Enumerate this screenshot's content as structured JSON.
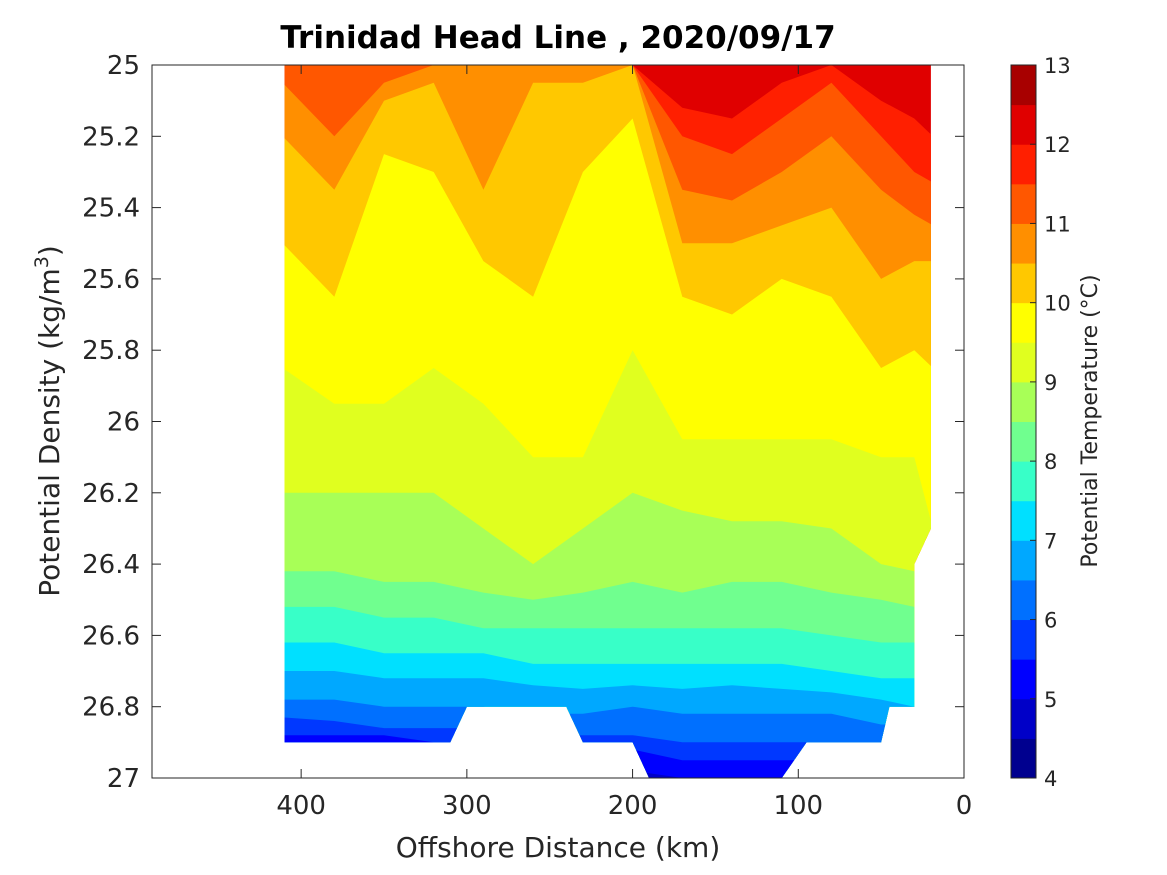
{
  "chart_data": {
    "type": "heatmap",
    "subtype": "filled-contour",
    "title": "Trinidad Head Line , 2020/09/17",
    "xlabel": "Offshore Distance (km)",
    "ylabel_main": "Potential Density (kg/m",
    "ylabel_sup": "3",
    "ylabel_close": ")",
    "x_axis": {
      "lim": [
        490,
        0
      ],
      "reversed": true,
      "ticks": [
        400,
        300,
        200,
        100,
        0
      ],
      "tick_labels": [
        "400",
        "300",
        "200",
        "100",
        "0"
      ]
    },
    "y_axis": {
      "lim": [
        25,
        27
      ],
      "reversed": true,
      "ticks": [
        25,
        25.2,
        25.4,
        25.6,
        25.8,
        26,
        26.2,
        26.4,
        26.6,
        26.8,
        27
      ],
      "tick_labels": [
        "25",
        "25.2",
        "25.4",
        "25.6",
        "25.8",
        "26",
        "26.2",
        "26.4",
        "26.6",
        "26.8",
        "27"
      ]
    },
    "colorbar": {
      "label": "Potential Temperature (°C)",
      "min": 4,
      "max": 13,
      "levels_step": 0.5,
      "ticks": [
        4,
        5,
        6,
        7,
        8,
        9,
        10,
        11,
        12,
        13
      ],
      "tick_labels": [
        "4",
        "5",
        "6",
        "7",
        "8",
        "9",
        "10",
        "11",
        "12",
        "13"
      ],
      "colors": [
        "#00008f",
        "#0000c8",
        "#0000ff",
        "#0038ff",
        "#0070ff",
        "#00a8ff",
        "#00e0ff",
        "#38ffc8",
        "#70ff8f",
        "#a8ff57",
        "#e0ff1f",
        "#ffff00",
        "#ffc800",
        "#ff8f00",
        "#ff5700",
        "#ff1f00",
        "#e00000",
        "#a80000"
      ]
    },
    "stations_x": [
      410,
      380,
      350,
      320,
      290,
      260,
      230,
      200,
      170,
      140,
      110,
      80,
      50,
      30,
      20
    ],
    "isotherms": [
      {
        "temp": 12.0,
        "y": [
          25.0,
          25.0,
          25.0,
          25.0,
          25.0,
          25.0,
          25.0,
          25.0,
          25.12,
          25.15,
          25.05,
          25.0,
          25.1,
          25.15,
          25.2
        ]
      },
      {
        "temp": 11.5,
        "y": [
          25.0,
          25.0,
          25.0,
          25.0,
          25.0,
          25.0,
          25.0,
          25.0,
          25.2,
          25.25,
          25.15,
          25.05,
          25.2,
          25.3,
          25.33
        ]
      },
      {
        "temp": 11.0,
        "y": [
          25.05,
          25.2,
          25.05,
          25.0,
          25.0,
          25.0,
          25.0,
          25.0,
          25.35,
          25.38,
          25.3,
          25.2,
          25.35,
          25.42,
          25.45
        ]
      },
      {
        "temp": 10.5,
        "y": [
          25.2,
          25.35,
          25.1,
          25.05,
          25.35,
          25.05,
          25.05,
          25.0,
          25.5,
          25.5,
          25.45,
          25.4,
          25.6,
          25.55,
          25.55
        ]
      },
      {
        "temp": 10.0,
        "y": [
          25.5,
          25.65,
          25.25,
          25.3,
          25.55,
          25.65,
          25.3,
          25.15,
          25.65,
          25.7,
          25.6,
          25.65,
          25.85,
          25.8,
          25.85
        ]
      },
      {
        "temp": 9.5,
        "y": [
          25.85,
          25.95,
          25.95,
          25.85,
          25.95,
          26.1,
          26.1,
          25.8,
          26.05,
          26.05,
          26.05,
          26.05,
          26.1,
          26.1,
          26.3
        ]
      },
      {
        "temp": 9.0,
        "y": [
          26.2,
          26.2,
          26.2,
          26.2,
          26.3,
          26.4,
          26.3,
          26.2,
          26.25,
          26.28,
          26.28,
          26.3,
          26.4,
          26.42,
          26.42
        ]
      },
      {
        "temp": 8.5,
        "y": [
          26.42,
          26.42,
          26.45,
          26.45,
          26.48,
          26.5,
          26.48,
          26.45,
          26.48,
          26.45,
          26.45,
          26.48,
          26.5,
          26.52,
          26.52
        ]
      },
      {
        "temp": 8.0,
        "y": [
          26.52,
          26.52,
          26.55,
          26.55,
          26.58,
          26.58,
          26.58,
          26.58,
          26.58,
          26.58,
          26.58,
          26.6,
          26.62,
          26.62,
          26.62
        ]
      },
      {
        "temp": 7.5,
        "y": [
          26.62,
          26.62,
          26.65,
          26.65,
          26.65,
          26.68,
          26.68,
          26.68,
          26.68,
          26.68,
          26.68,
          26.7,
          26.72,
          26.72,
          26.72
        ]
      },
      {
        "temp": 7.0,
        "y": [
          26.7,
          26.7,
          26.72,
          26.72,
          26.72,
          26.74,
          26.75,
          26.74,
          26.75,
          26.74,
          26.75,
          26.76,
          26.78,
          26.8,
          26.8
        ]
      },
      {
        "temp": 6.5,
        "y": [
          26.78,
          26.78,
          26.8,
          26.8,
          26.8,
          26.82,
          26.82,
          26.8,
          26.82,
          26.82,
          26.82,
          26.82,
          26.85,
          26.85,
          26.85
        ]
      },
      {
        "temp": 6.0,
        "y": [
          26.83,
          26.84,
          26.86,
          26.86,
          26.86,
          26.88,
          26.88,
          26.88,
          26.9,
          26.9,
          26.9,
          26.9,
          26.9,
          26.9,
          26.9
        ]
      },
      {
        "temp": 5.5,
        "y": [
          26.88,
          26.88,
          26.88,
          26.9,
          26.9,
          26.92,
          26.92,
          26.92,
          26.95,
          26.95,
          26.95,
          26.95,
          26.95,
          26.95,
          26.95
        ]
      },
      {
        "temp": 5.0,
        "y": [
          26.95,
          26.95,
          26.95,
          26.95,
          26.95,
          26.98,
          26.98,
          26.98,
          27.0,
          27.0,
          27.0,
          27.0,
          27.0,
          27.0,
          27.0
        ]
      }
    ],
    "data_region": [
      [
        410,
        25.0
      ],
      [
        20,
        25.0
      ],
      [
        20,
        26.3
      ],
      [
        30,
        26.4
      ],
      [
        30,
        26.8
      ],
      [
        45,
        26.8
      ],
      [
        50,
        26.9
      ],
      [
        95,
        26.9
      ],
      [
        110,
        27.0
      ],
      [
        190,
        27.0
      ],
      [
        200,
        26.9
      ],
      [
        230,
        26.9
      ],
      [
        240,
        26.8
      ],
      [
        300,
        26.8
      ],
      [
        310,
        26.9
      ],
      [
        410,
        26.9
      ]
    ]
  }
}
